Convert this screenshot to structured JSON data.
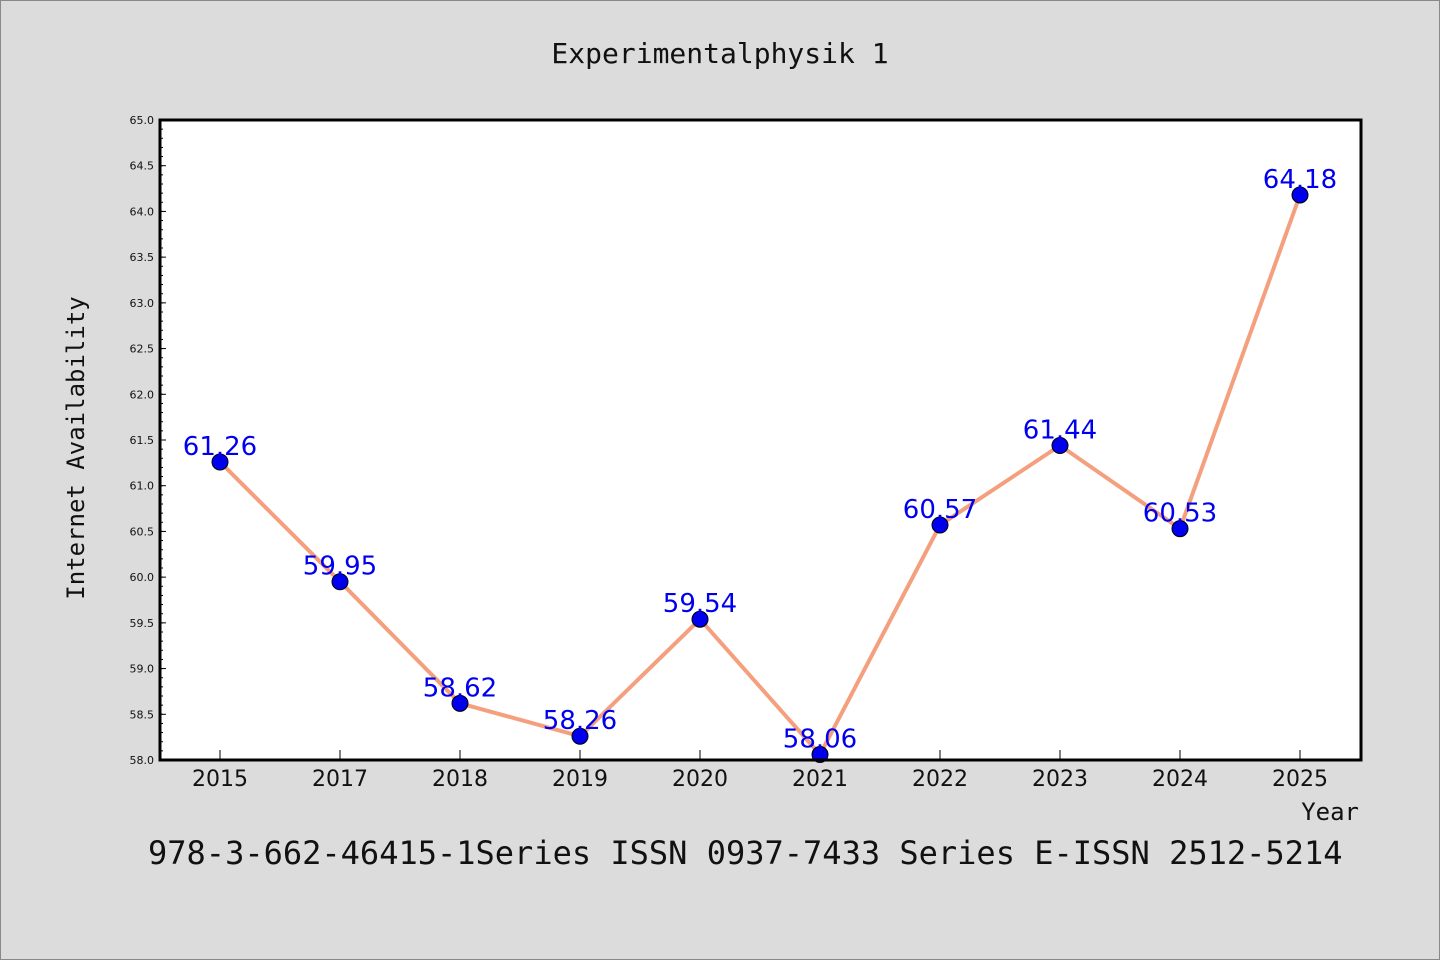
{
  "chart_data": {
    "type": "line",
    "title": "Experimentalphysik 1",
    "xlabel": "Year",
    "ylabel": "Internet Availability",
    "categories": [
      "2015",
      "2017",
      "2018",
      "2019",
      "2020",
      "2021",
      "2022",
      "2023",
      "2024",
      "2025"
    ],
    "series": [
      {
        "values": [
          61.26,
          59.95,
          58.62,
          58.26,
          59.54,
          58.06,
          60.57,
          61.44,
          60.53,
          64.18
        ]
      }
    ],
    "data_labels": [
      "61.26",
      "59.95",
      "58.62",
      "58.26",
      "59.54",
      "58.06",
      "60.57",
      "61.44",
      "60.53",
      "64.18"
    ],
    "ylim": [
      58.0,
      65.0
    ],
    "yticks": [
      "58.0",
      "58.5",
      "59.0",
      "59.5",
      "60.0",
      "60.5",
      "61.0",
      "61.5",
      "62.0",
      "62.5",
      "63.0",
      "63.5",
      "64.0",
      "64.5",
      "65.0"
    ],
    "grid": false,
    "legend": "none",
    "colors": {
      "background": "#dcdcdc",
      "plot_background": "#ffffff",
      "line": "#f4a07e",
      "marker": "#0000ee",
      "data_label": "#0000ee",
      "axis": "#000000"
    }
  },
  "footer": {
    "text": "978-3-662-46415-1Series ISSN 0937-7433 Series E-ISSN 2512-5214"
  }
}
